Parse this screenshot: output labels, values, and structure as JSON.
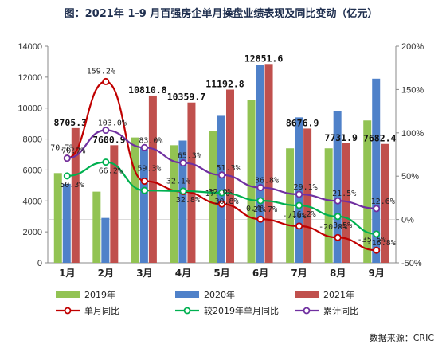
{
  "title": "图：2021年 1-9 月百强房企单月操盘业绩表现及同比变动（亿元）",
  "source": "数据来源：CRIC",
  "chart_data": {
    "type": "bar",
    "categories": [
      "1月",
      "2月",
      "3月",
      "4月",
      "5月",
      "6月",
      "7月",
      "8月",
      "9月"
    ],
    "ylim": [
      0,
      14000
    ],
    "y_ticks": [
      "0",
      "2000",
      "4000",
      "6000",
      "8000",
      "10000",
      "12000",
      "14000"
    ],
    "y2lim": [
      -50,
      200
    ],
    "y2_ticks": [
      "-50%",
      "0%",
      "50%",
      "100%",
      "150%",
      "200%"
    ],
    "series": [
      {
        "name": "2019年",
        "color": "#92c353",
        "values": [
          5800,
          4600,
          8100,
          7600,
          8500,
          10500,
          7400,
          7400,
          9200
        ]
      },
      {
        "name": "2020年",
        "color": "#4f81c9",
        "values": [
          5100,
          2900,
          7500,
          7900,
          9500,
          12800,
          9400,
          9800,
          11900
        ]
      },
      {
        "name": "2021年",
        "color": "#c0504d",
        "values": [
          8705.3,
          7600.9,
          10810.8,
          10359.7,
          11192.8,
          12851.6,
          8676.9,
          7731.9,
          7682.4
        ]
      }
    ],
    "bar_labels": [
      "8705.3",
      "7600.9",
      "10810.8",
      "10359.7",
      "11192.8",
      "12851.6",
      "8676.9",
      "7731.9",
      "7682.4"
    ],
    "line_series": [
      {
        "name": "单月同比",
        "color": "#c00000",
        "values": [
          70.7,
          159.2,
          44.2,
          32.1,
          17.8,
          0.4,
          -7.6,
          -20.8,
          -35.5
        ],
        "labels": [
          "70.7%",
          "159.2%",
          "",
          "32.1%",
          "17.8%",
          "0.4%",
          "-7.6%",
          "-20.8%",
          "-35.5%"
        ]
      },
      {
        "name": "较2019年单月同比",
        "color": "#00b050",
        "values": [
          50.3,
          66.2,
          33.5,
          32.8,
          30.8,
          21.7,
          16.2,
          3.5,
          -16.8
        ],
        "labels": [
          "50.3%",
          "66.2%",
          "",
          "32.8%",
          "30.8%",
          "21.7%",
          "16.2%",
          "3.5%",
          "-16.8%"
        ]
      },
      {
        "name": "累计同比",
        "color": "#7030a0",
        "values": [
          70.7,
          103.0,
          83.0,
          65.3,
          51.3,
          36.8,
          29.1,
          21.5,
          12.6
        ],
        "labels": [
          "70.7%",
          "103.0%",
          "83.0%",
          "65.3%",
          "51.3%",
          "36.8%",
          "29.1%",
          "21.5%",
          "12.6%"
        ]
      }
    ],
    "extra_labels": [
      "59.3%",
      "32.0%"
    ],
    "legend": [
      "2019年",
      "2020年",
      "2021年",
      "单月同比",
      "较2019年单月同比",
      "累计同比"
    ],
    "legend_position": "bottom"
  }
}
